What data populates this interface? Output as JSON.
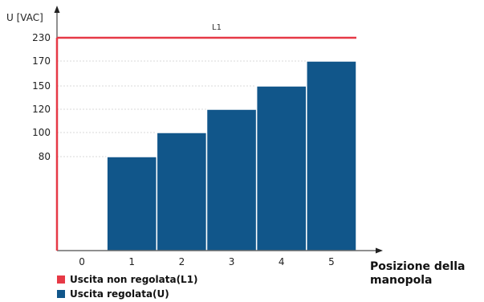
{
  "chart_data": {
    "type": "bar",
    "ylabel": "U [VAC]",
    "xlabel_line1": "Posizione della",
    "xlabel_line2": "manopola",
    "categories": [
      "0",
      "1",
      "2",
      "3",
      "4",
      "5"
    ],
    "y_ticks": [
      "230",
      "170",
      "150",
      "120",
      "100",
      "80"
    ],
    "series": [
      {
        "name": "Uscita regolata(U)",
        "values": [
          null,
          80,
          100,
          120,
          150,
          170
        ]
      }
    ],
    "reference_line": {
      "label": "L1",
      "value": 230,
      "legend": "Uscita non regolata(L1)"
    },
    "legend": [
      {
        "label": "Uscita non regolata(L1)",
        "color": "#e63946"
      },
      {
        "label": "Uscita regolata(U)",
        "color": "#11568a"
      }
    ],
    "grid": true,
    "colors": {
      "bar": "#11568a",
      "line": "#e63946",
      "axis": "#222222"
    }
  }
}
